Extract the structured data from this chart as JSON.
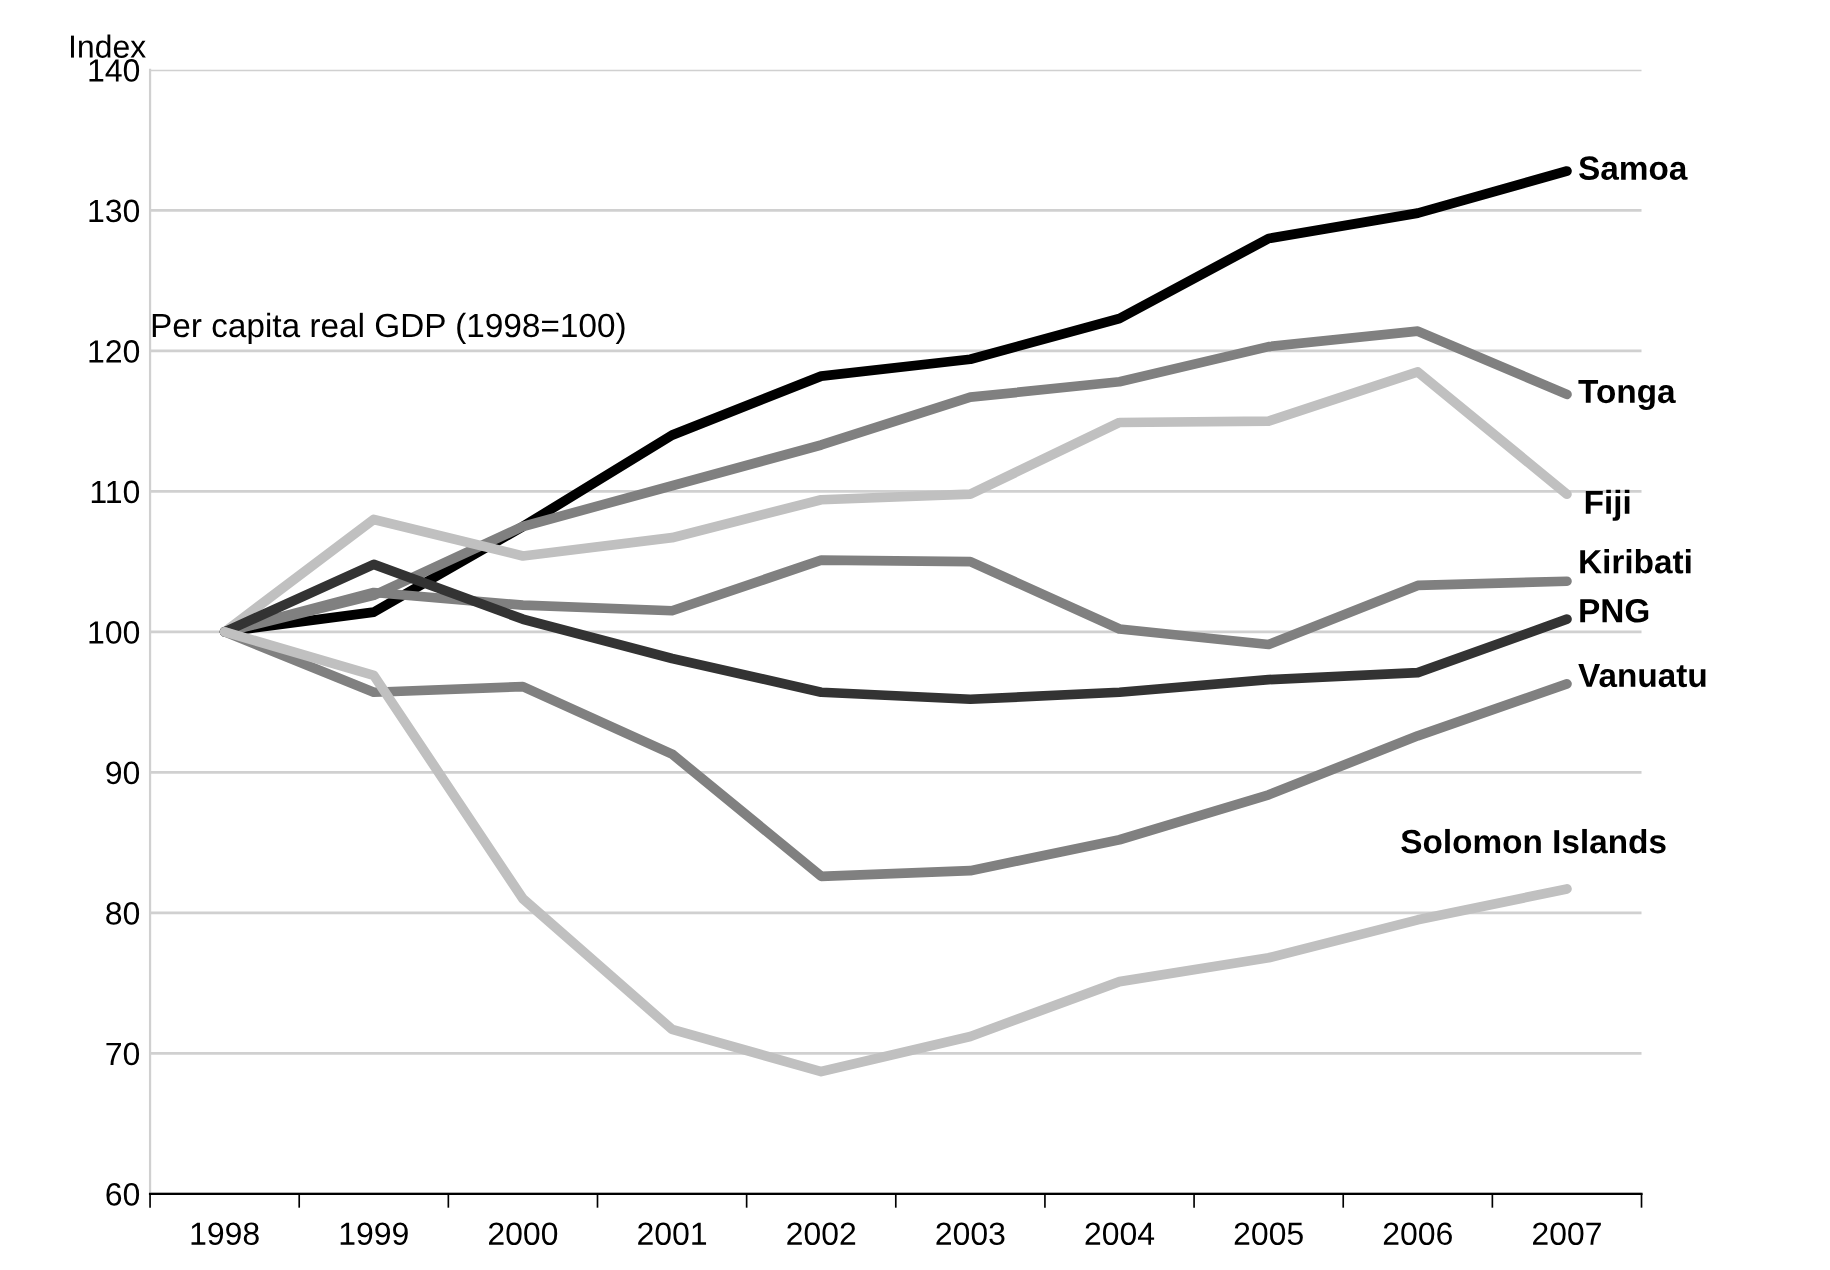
{
  "chart_data": {
    "type": "line",
    "title": "Per capita real GDP (1998=100)",
    "ylabel": "Index",
    "categories": [
      "1998",
      "1999",
      "2000",
      "2001",
      "2002",
      "2003",
      "2004",
      "2005",
      "2006",
      "2007"
    ],
    "ylim": [
      60,
      140
    ],
    "yticks": [
      60,
      70,
      80,
      90,
      100,
      110,
      120,
      130,
      140
    ],
    "grid": "y",
    "legend": false,
    "marker": "none",
    "line_style": "solid",
    "series": [
      {
        "name": "Samoa",
        "color": "#000000",
        "values": [
          100,
          101.4,
          107.5,
          114,
          118.2,
          119.4,
          122.3,
          128,
          129.8,
          132.8
        ]
      },
      {
        "name": "Tonga",
        "color": "#808080",
        "values": [
          100,
          102.6,
          107.5,
          110.4,
          113.3,
          116.7,
          117.8,
          120.3,
          121.4,
          116.9
        ]
      },
      {
        "name": "Fiji",
        "color": "#c0c0c0",
        "values": [
          100,
          108,
          105.4,
          106.7,
          109.4,
          109.8,
          114.9,
          115,
          118.5,
          109.8
        ]
      },
      {
        "name": "Kiribati",
        "color": "#808080",
        "values": [
          100,
          102.8,
          101.9,
          101.5,
          105.1,
          105,
          100.2,
          99.1,
          103.3,
          103.6
        ]
      },
      {
        "name": "PNG",
        "color": "#333333",
        "values": [
          100,
          104.8,
          100.9,
          98.1,
          95.7,
          95.2,
          95.7,
          96.6,
          97.1,
          100.9
        ]
      },
      {
        "name": "Vanuatu",
        "color": "#808080",
        "values": [
          100,
          95.7,
          96.1,
          91.3,
          82.6,
          83,
          85.2,
          88.4,
          92.6,
          96.3
        ]
      },
      {
        "name": "Solomon Islands",
        "color": "#c0c0c0",
        "values": [
          100,
          96.9,
          81,
          71.7,
          68.7,
          71.2,
          75.1,
          76.8,
          79.5,
          81.7
        ]
      }
    ]
  }
}
